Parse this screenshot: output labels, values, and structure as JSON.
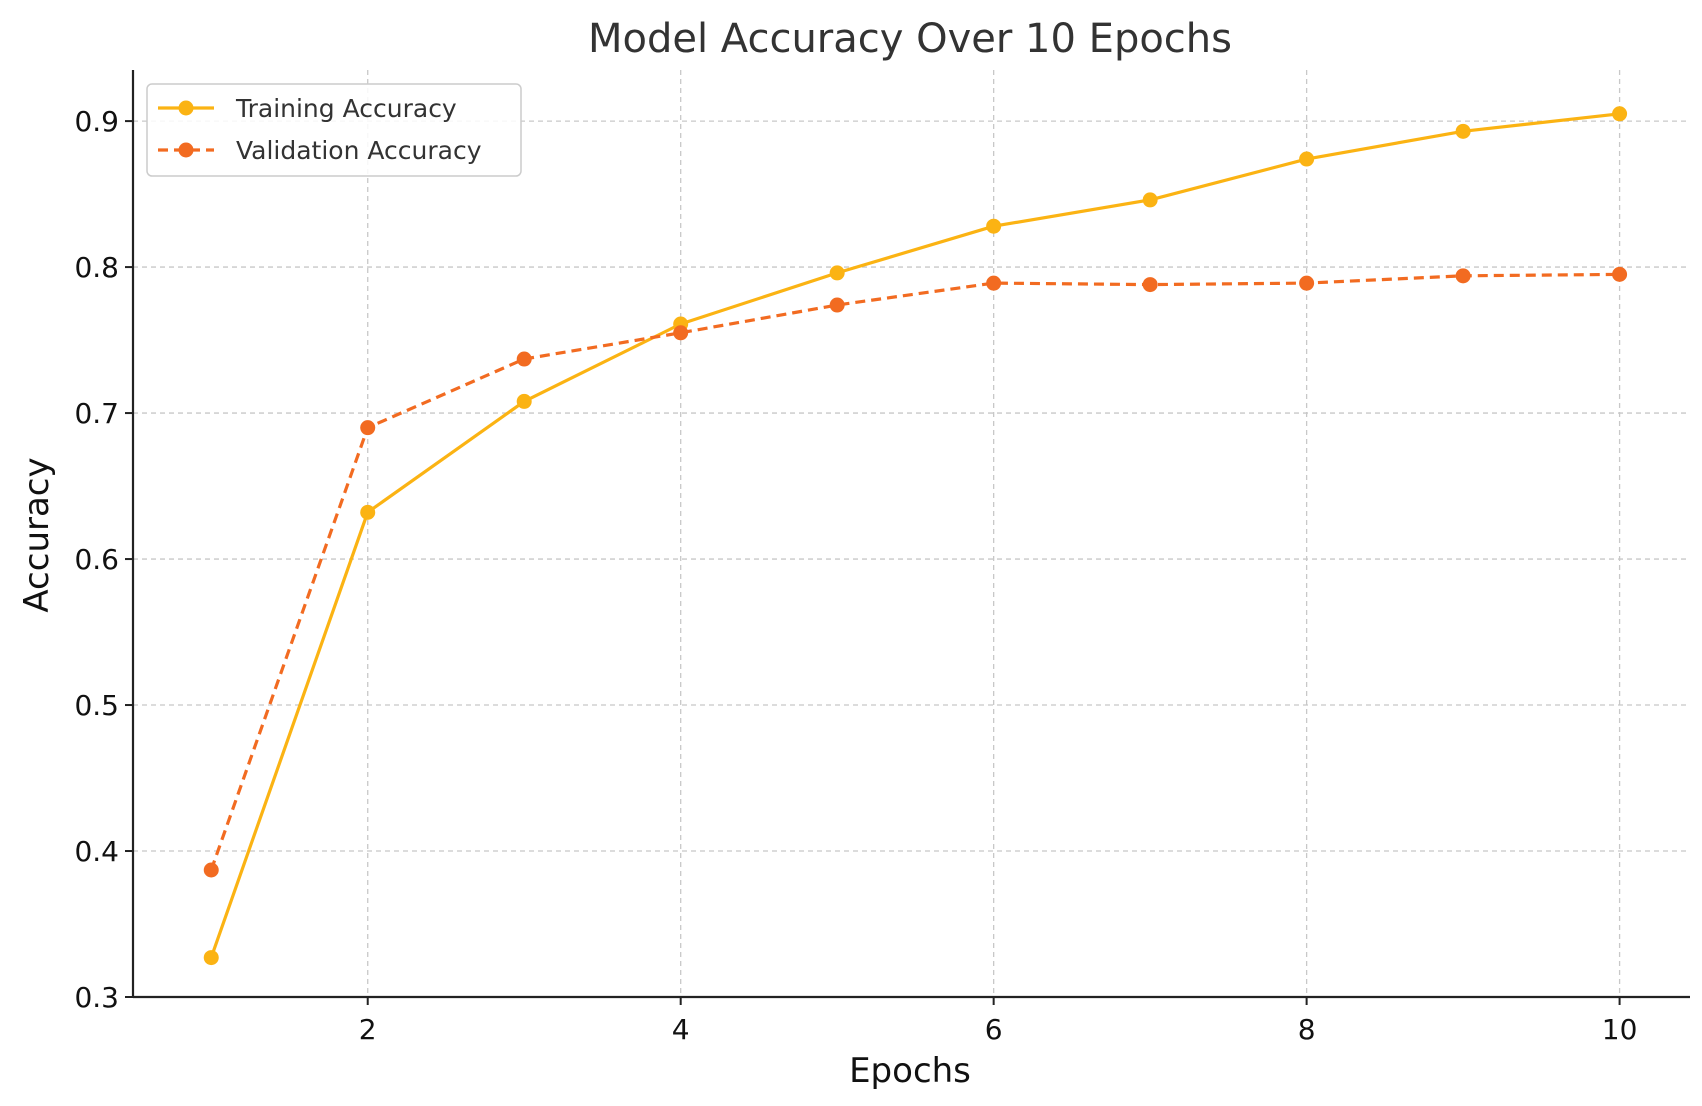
{
  "chart_data": {
    "type": "line",
    "title": "Model Accuracy Over 10 Epochs",
    "xlabel": "Epochs",
    "ylabel": "Accuracy",
    "x": [
      1,
      2,
      3,
      4,
      5,
      6,
      7,
      8,
      9,
      10
    ],
    "xlim": [
      0.5,
      10.45
    ],
    "ylim": [
      0.3,
      0.935
    ],
    "xticks": [
      2,
      4,
      6,
      8,
      10
    ],
    "yticks": [
      0.3,
      0.4,
      0.5,
      0.6,
      0.7,
      0.8,
      0.9
    ],
    "xtick_labels": [
      "2",
      "4",
      "6",
      "8",
      "10"
    ],
    "ytick_labels": [
      "0.3",
      "0.4",
      "0.5",
      "0.6",
      "0.7",
      "0.8",
      "0.9"
    ],
    "grid": true,
    "legend_position": "top-left",
    "series": [
      {
        "name": "Training Accuracy",
        "color": "#FBB313",
        "line_style": "solid",
        "values": [
          0.327,
          0.632,
          0.708,
          0.761,
          0.796,
          0.828,
          0.846,
          0.874,
          0.893,
          0.905
        ]
      },
      {
        "name": "Validation Accuracy",
        "color": "#F26B21",
        "line_style": "dashed",
        "values": [
          0.387,
          0.69,
          0.737,
          0.755,
          0.774,
          0.789,
          0.788,
          0.789,
          0.794,
          0.795
        ]
      }
    ]
  }
}
